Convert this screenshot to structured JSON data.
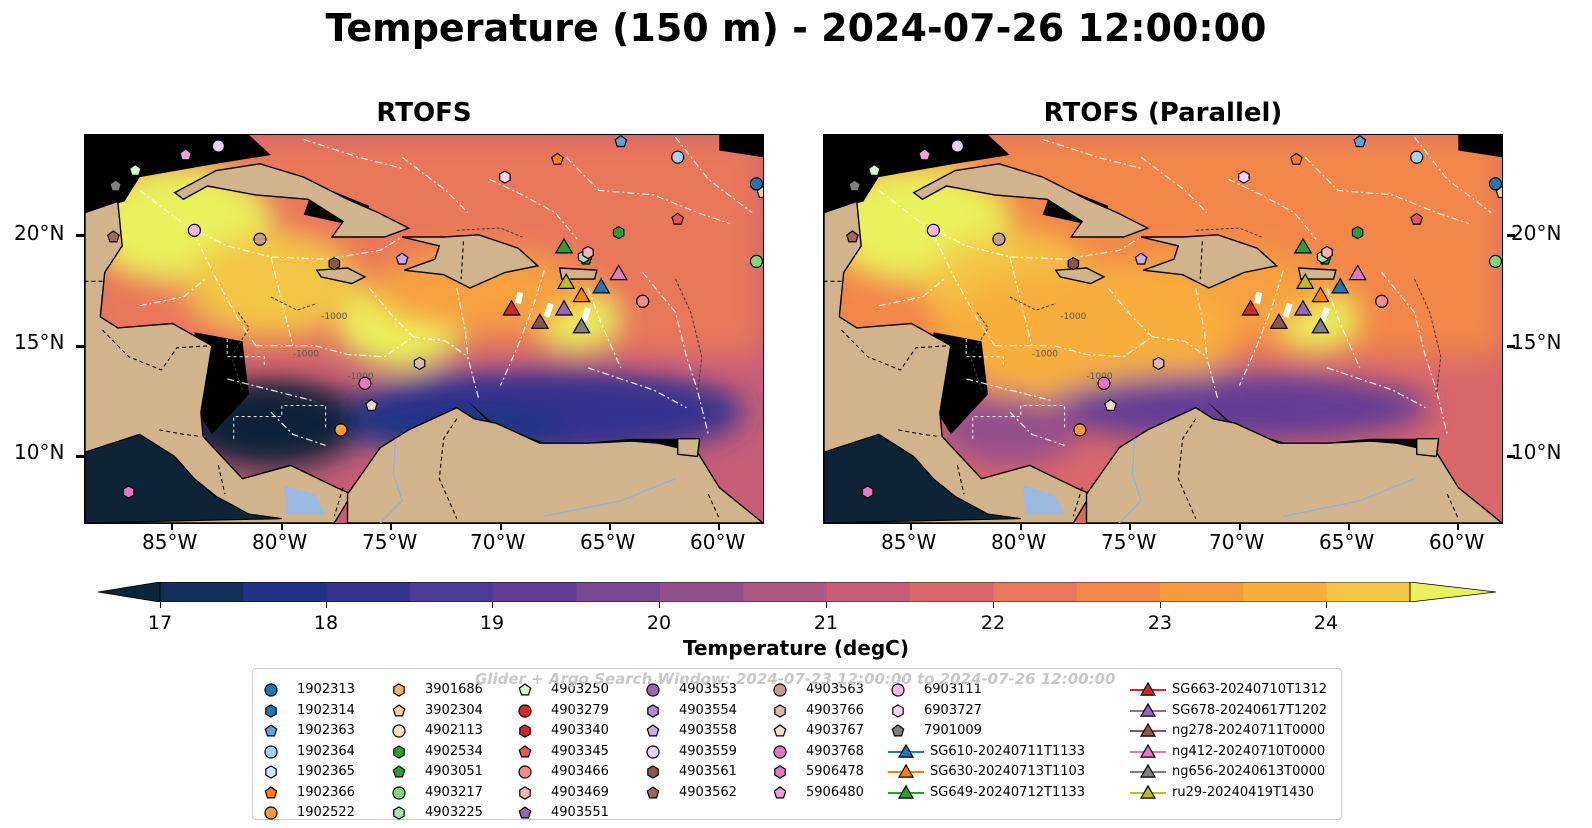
{
  "title": "Temperature (150 m) - 2024-07-26 12:00:00",
  "panels": [
    {
      "title": "RTOFS"
    },
    {
      "title": "RTOFS (Parallel)"
    }
  ],
  "axes": {
    "lat_labels": [
      "20°N",
      "15°N",
      "10°N"
    ],
    "lon_labels": [
      "85°W",
      "80°W",
      "75°W",
      "70°W",
      "65°W",
      "60°W"
    ],
    "contour_labels": [
      "-1000",
      "-1000",
      "-1000"
    ]
  },
  "colorbar": {
    "label": "Temperature (degC)",
    "ticks": [
      "17",
      "18",
      "19",
      "20",
      "21",
      "22",
      "23",
      "24"
    ],
    "colors": [
      "#0b2437",
      "#132e5a",
      "#1e3483",
      "#35338f",
      "#4c3b97",
      "#633d96",
      "#7a4791",
      "#94508d",
      "#ae5883",
      "#c65e78",
      "#d9676a",
      "#e9775a",
      "#f2874a",
      "#f69a3e",
      "#f8ae3d",
      "#f3c645",
      "#e9e758"
    ],
    "over_color": "#e9f25c",
    "under_color": "#0b2437"
  },
  "legend": {
    "watermark": "Glider + Argo Search Window: 2024-07-23 12:00:00 to 2024-07-26 12:00:00",
    "items": [
      {
        "label": "1902313",
        "color": "#1f77b4",
        "marker": "circle"
      },
      {
        "label": "1902314",
        "color": "#1f77b4",
        "marker": "hexagon"
      },
      {
        "label": "1902363",
        "color": "#5aa4e0",
        "marker": "pentagon"
      },
      {
        "label": "1902364",
        "color": "#a8d0f0",
        "marker": "circle"
      },
      {
        "label": "1902365",
        "color": "#cfe6f8",
        "marker": "hexagon"
      },
      {
        "label": "1902366",
        "color": "#ff7f0e",
        "marker": "pentagon"
      },
      {
        "label": "1902522",
        "color": "#ff9a33",
        "marker": "circle"
      },
      {
        "label": "3901686",
        "color": "#ffb266",
        "marker": "hexagon"
      },
      {
        "label": "3902304",
        "color": "#ffcc99",
        "marker": "pentagon"
      },
      {
        "label": "4902113",
        "color": "#ffe0c2",
        "marker": "circle"
      },
      {
        "label": "4902534",
        "color": "#2ca02c",
        "marker": "hexagon"
      },
      {
        "label": "4903051",
        "color": "#2ca02c",
        "marker": "pentagon"
      },
      {
        "label": "4903217",
        "color": "#7dd87d",
        "marker": "circle"
      },
      {
        "label": "4903225",
        "color": "#a8e6a8",
        "marker": "hexagon"
      },
      {
        "label": "4903250",
        "color": "#d8f5d0",
        "marker": "pentagon"
      },
      {
        "label": "4903279",
        "color": "#d62728",
        "marker": "circle"
      },
      {
        "label": "4903340",
        "color": "#d62728",
        "marker": "hexagon"
      },
      {
        "label": "4903345",
        "color": "#e8565a",
        "marker": "pentagon"
      },
      {
        "label": "4903466",
        "color": "#f28c8c",
        "marker": "circle"
      },
      {
        "label": "4903469",
        "color": "#f8b4b4",
        "marker": "hexagon"
      },
      {
        "label": "4903551",
        "color": "#9467bd",
        "marker": "pentagon"
      },
      {
        "label": "4903553",
        "color": "#9467bd",
        "marker": "circle"
      },
      {
        "label": "4903554",
        "color": "#b08ad6",
        "marker": "hexagon"
      },
      {
        "label": "4903558",
        "color": "#c9aaeb",
        "marker": "pentagon"
      },
      {
        "label": "4903559",
        "color": "#e5d2f7",
        "marker": "circle"
      },
      {
        "label": "4903561",
        "color": "#8c564b",
        "marker": "hexagon"
      },
      {
        "label": "4903562",
        "color": "#a0685c",
        "marker": "pentagon"
      },
      {
        "label": "4903563",
        "color": "#c49c94",
        "marker": "circle"
      },
      {
        "label": "4903766",
        "color": "#e0b8ae",
        "marker": "hexagon"
      },
      {
        "label": "4903767",
        "color": "#f7d9cf",
        "marker": "pentagon"
      },
      {
        "label": "4903768",
        "color": "#e377c2",
        "marker": "circle"
      },
      {
        "label": "5906478",
        "color": "#e377c2",
        "marker": "hexagon"
      },
      {
        "label": "5906480",
        "color": "#f0a0d8",
        "marker": "pentagon"
      },
      {
        "label": "6903111",
        "color": "#f7b6e6",
        "marker": "circle"
      },
      {
        "label": "6903727",
        "color": "#fad4f0",
        "marker": "hexagon"
      },
      {
        "label": "7901009",
        "color": "#7f7f7f",
        "marker": "pentagon"
      },
      {
        "label": "SG610-20240711T1133",
        "color": "#1f77b4",
        "marker": "triangle"
      },
      {
        "label": "SG630-20240713T1103",
        "color": "#ff7f0e",
        "marker": "triangle"
      },
      {
        "label": "SG649-20240712T1133",
        "color": "#2ca02c",
        "marker": "triangle"
      },
      {
        "label": "SG663-20240710T1312",
        "color": "#d62728",
        "marker": "triangle"
      },
      {
        "label": "SG678-20240617T1202",
        "color": "#9467bd",
        "marker": "triangle"
      },
      {
        "label": "ng278-20240711T0000",
        "color": "#8c564b",
        "marker": "triangle"
      },
      {
        "label": "ng412-20240710T0000",
        "color": "#e377c2",
        "marker": "triangle"
      },
      {
        "label": "ng656-20240613T0000",
        "color": "#7f7f7f",
        "marker": "triangle"
      },
      {
        "label": "ru29-20240419T1430",
        "color": "#bcbd22",
        "marker": "triangle"
      }
    ]
  },
  "map_extent": {
    "lon": [
      -89,
      -58
    ],
    "lat": [
      7,
      24.5
    ]
  },
  "floats": [
    {
      "id": "1902313",
      "lon": -58.3,
      "lat": 22.3
    },
    {
      "id": "1902363",
      "lon": -64.5,
      "lat": 24.2
    },
    {
      "id": "1902364",
      "lon": -61.9,
      "lat": 23.5
    },
    {
      "id": "1902366",
      "lon": -67.4,
      "lat": 23.4
    },
    {
      "id": "1902522",
      "lon": -77.3,
      "lat": 11.2
    },
    {
      "id": "3902304",
      "lon": -58.0,
      "lat": 21.9
    },
    {
      "id": "4902534",
      "lon": -64.6,
      "lat": 20.1
    },
    {
      "id": "4903051",
      "lon": -66.1,
      "lat": 18.9
    },
    {
      "id": "4903217",
      "lon": -58.3,
      "lat": 18.8
    },
    {
      "id": "4903225",
      "lon": -66.2,
      "lat": 19.0
    },
    {
      "id": "4903250",
      "lon": -86.7,
      "lat": 22.9
    },
    {
      "id": "4903345",
      "lon": -61.9,
      "lat": 20.7
    },
    {
      "id": "4903466",
      "lon": -63.5,
      "lat": 17.0
    },
    {
      "id": "4903469",
      "lon": -66.0,
      "lat": 19.2
    },
    {
      "id": "4903558",
      "lon": -74.5,
      "lat": 18.9
    },
    {
      "id": "4903559",
      "lon": -82.9,
      "lat": 24.0
    },
    {
      "id": "4903561",
      "lon": -77.6,
      "lat": 18.7
    },
    {
      "id": "4903562",
      "lon": -87.7,
      "lat": 19.9
    },
    {
      "id": "4903563",
      "lon": -81.0,
      "lat": 19.8
    },
    {
      "id": "4903766",
      "lon": -73.7,
      "lat": 14.2
    },
    {
      "id": "4903767",
      "lon": -75.9,
      "lat": 12.3
    },
    {
      "id": "4903768",
      "lon": -76.2,
      "lat": 13.3
    },
    {
      "id": "5906478",
      "lon": -87.0,
      "lat": 8.4
    },
    {
      "id": "5906480",
      "lon": -84.4,
      "lat": 23.6
    },
    {
      "id": "6903111",
      "lon": -84.0,
      "lat": 20.2
    },
    {
      "id": "6903727",
      "lon": -69.8,
      "lat": 22.6
    },
    {
      "id": "7901009",
      "lon": -87.6,
      "lat": 22.2
    }
  ],
  "gliders": [
    {
      "id": "SG610-20240711T1133",
      "lon": -65.4,
      "lat": 17.7
    },
    {
      "id": "SG630-20240713T1103",
      "lon": -66.3,
      "lat": 17.3
    },
    {
      "id": "SG649-20240712T1133",
      "lon": -67.1,
      "lat": 19.5
    },
    {
      "id": "SG663-20240710T1312",
      "lon": -69.5,
      "lat": 16.7
    },
    {
      "id": "SG678-20240617T1202",
      "lon": -67.1,
      "lat": 16.7
    },
    {
      "id": "ng278-20240711T0000",
      "lon": -68.2,
      "lat": 16.1
    },
    {
      "id": "ng412-20240710T0000",
      "lon": -64.6,
      "lat": 18.3
    },
    {
      "id": "ng656-20240613T0000",
      "lon": -66.3,
      "lat": 15.9
    },
    {
      "id": "ru29-20240419T1430",
      "lon": -67.0,
      "lat": 17.9
    }
  ]
}
